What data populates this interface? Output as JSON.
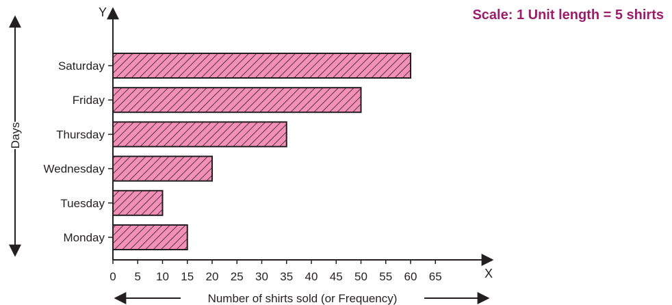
{
  "chart_data": {
    "type": "bar",
    "orientation": "horizontal",
    "categories": [
      "Monday",
      "Tuesday",
      "Wednesday",
      "Thursday",
      "Friday",
      "Saturday"
    ],
    "values": [
      15,
      10,
      20,
      35,
      50,
      60
    ],
    "xlabel": "Number of shirts sold (or Frequency)",
    "ylabel": "Days",
    "x_axis_letter": "X",
    "y_axis_letter": "Y",
    "x_ticks": [
      0,
      5,
      10,
      15,
      20,
      25,
      30,
      35,
      40,
      45,
      50,
      55,
      60,
      65
    ],
    "xlim": [
      0,
      65
    ],
    "grid": false,
    "bar_fill": "#f48fb8",
    "bar_hatch": "#231f20",
    "scale_note": "Scale: 1 Unit length = 5 shirts",
    "scale_note_color": "#9b1c6b"
  }
}
